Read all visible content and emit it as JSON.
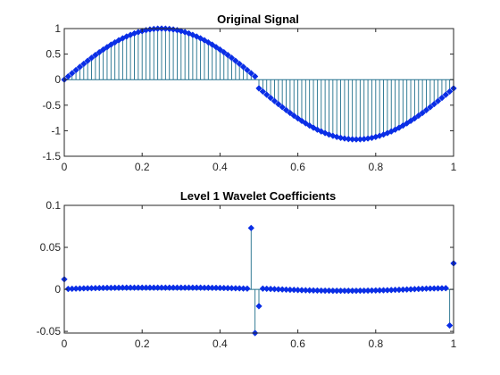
{
  "chart_data": [
    {
      "type": "stem",
      "title": "Original Signal",
      "xlim": [
        0,
        1
      ],
      "ylim": [
        -1.5,
        1
      ],
      "xticks": [
        0,
        0.2,
        0.4,
        0.6,
        0.8,
        1
      ],
      "xtick_labels": [
        "0",
        "0.2",
        "0.4",
        "0.6",
        "0.8",
        "1"
      ],
      "yticks": [
        -1.5,
        -1,
        -0.5,
        0,
        0.5,
        1
      ],
      "ytick_labels": [
        "-1.5",
        "-1",
        "-0.5",
        "0",
        "0.5",
        "1"
      ],
      "marker": "diamond",
      "marker_color": "#0a2ee6",
      "stem_color": "#1f6f8b",
      "series": [
        {
          "x": [
            0.0,
            0.01,
            0.02,
            0.03,
            0.04,
            0.05,
            0.06,
            0.07,
            0.08,
            0.09,
            0.1,
            0.11,
            0.12,
            0.13,
            0.14,
            0.15,
            0.16,
            0.17,
            0.18,
            0.19,
            0.2,
            0.21,
            0.22,
            0.23,
            0.24,
            0.25,
            0.26,
            0.27,
            0.28,
            0.29,
            0.3,
            0.31,
            0.32,
            0.33,
            0.34,
            0.35,
            0.36,
            0.37,
            0.38,
            0.39,
            0.4,
            0.41,
            0.42,
            0.43,
            0.44,
            0.45,
            0.46,
            0.47,
            0.48,
            0.49,
            0.5,
            0.51,
            0.52,
            0.53,
            0.54,
            0.55,
            0.56,
            0.57,
            0.58,
            0.59,
            0.6,
            0.61,
            0.62,
            0.63,
            0.64,
            0.65,
            0.66,
            0.67,
            0.68,
            0.69,
            0.7,
            0.71,
            0.72,
            0.73,
            0.74,
            0.75,
            0.76,
            0.77,
            0.78,
            0.79,
            0.8,
            0.81,
            0.82,
            0.83,
            0.84,
            0.85,
            0.86,
            0.87,
            0.88,
            0.89,
            0.9,
            0.91,
            0.92,
            0.93,
            0.94,
            0.95,
            0.96,
            0.97,
            0.98,
            0.99,
            1.0
          ],
          "y": [
            0.0,
            0.063,
            0.125,
            0.187,
            0.249,
            0.309,
            0.368,
            0.426,
            0.482,
            0.536,
            0.588,
            0.637,
            0.685,
            0.729,
            0.771,
            0.809,
            0.844,
            0.876,
            0.905,
            0.93,
            0.951,
            0.969,
            0.982,
            0.992,
            0.998,
            1.0,
            0.998,
            0.992,
            0.982,
            0.969,
            0.951,
            0.93,
            0.905,
            0.876,
            0.844,
            0.809,
            0.771,
            0.729,
            0.685,
            0.637,
            0.588,
            0.536,
            0.482,
            0.426,
            0.368,
            0.309,
            0.249,
            0.187,
            0.125,
            0.063,
            -0.17,
            -0.233,
            -0.295,
            -0.357,
            -0.419,
            -0.479,
            -0.538,
            -0.596,
            -0.652,
            -0.706,
            -0.758,
            -0.807,
            -0.855,
            -0.899,
            -0.941,
            -0.979,
            -1.014,
            -1.046,
            -1.075,
            -1.1,
            -1.121,
            -1.139,
            -1.152,
            -1.162,
            -1.168,
            -1.17,
            -1.168,
            -1.162,
            -1.152,
            -1.139,
            -1.121,
            -1.1,
            -1.075,
            -1.046,
            -1.014,
            -0.979,
            -0.941,
            -0.899,
            -0.855,
            -0.807,
            -0.758,
            -0.706,
            -0.652,
            -0.596,
            -0.538,
            -0.479,
            -0.419,
            -0.357,
            -0.295,
            -0.233,
            -0.17
          ]
        }
      ]
    },
    {
      "type": "stem",
      "title": "Level 1 Wavelet Coefficients",
      "xlim": [
        0,
        1
      ],
      "ylim": [
        -0.052,
        0.1
      ],
      "xticks": [
        0,
        0.2,
        0.4,
        0.6,
        0.8,
        1
      ],
      "xtick_labels": [
        "0",
        "0.2",
        "0.4",
        "0.6",
        "0.8",
        "1"
      ],
      "yticks": [
        -0.05,
        0,
        0.05,
        0.1
      ],
      "ytick_labels": [
        "-0.05",
        "0",
        "0.05",
        "0.1"
      ],
      "marker": "diamond",
      "marker_color": "#0a2ee6",
      "stem_color": "#1f6f8b",
      "series": [
        {
          "x": [
            0.0,
            0.01,
            0.02,
            0.03,
            0.04,
            0.05,
            0.06,
            0.07,
            0.08,
            0.09,
            0.1,
            0.11,
            0.12,
            0.13,
            0.14,
            0.15,
            0.16,
            0.17,
            0.18,
            0.19,
            0.2,
            0.21,
            0.22,
            0.23,
            0.24,
            0.25,
            0.26,
            0.27,
            0.28,
            0.29,
            0.3,
            0.31,
            0.32,
            0.33,
            0.34,
            0.35,
            0.36,
            0.37,
            0.38,
            0.39,
            0.4,
            0.41,
            0.42,
            0.43,
            0.44,
            0.45,
            0.46,
            0.47,
            0.48,
            0.49,
            0.5,
            0.51,
            0.52,
            0.53,
            0.54,
            0.55,
            0.56,
            0.57,
            0.58,
            0.59,
            0.6,
            0.61,
            0.62,
            0.63,
            0.64,
            0.65,
            0.66,
            0.67,
            0.68,
            0.69,
            0.7,
            0.71,
            0.72,
            0.73,
            0.74,
            0.75,
            0.76,
            0.77,
            0.78,
            0.79,
            0.8,
            0.81,
            0.82,
            0.83,
            0.84,
            0.85,
            0.86,
            0.87,
            0.88,
            0.89,
            0.9,
            0.91,
            0.92,
            0.93,
            0.94,
            0.95,
            0.96,
            0.97,
            0.98,
            0.99,
            1.0
          ],
          "y": [
            0.012,
            0.0005,
            0.0007,
            0.0009,
            0.001,
            0.0012,
            0.0013,
            0.0014,
            0.0015,
            0.0016,
            0.0017,
            0.0018,
            0.0018,
            0.0019,
            0.0019,
            0.002,
            0.002,
            0.002,
            0.002,
            0.002,
            0.002,
            0.002,
            0.002,
            0.002,
            0.002,
            0.002,
            0.002,
            0.002,
            0.002,
            0.002,
            0.002,
            0.002,
            0.002,
            0.002,
            0.002,
            0.002,
            0.0019,
            0.0019,
            0.0018,
            0.0018,
            0.0017,
            0.0016,
            0.0015,
            0.0014,
            0.0013,
            0.0012,
            0.001,
            0.0009,
            0.073,
            -0.052,
            -0.02,
            0.0009,
            0.0007,
            0.0005,
            0.0003,
            0.0001,
            -0.0001,
            -0.0003,
            -0.0005,
            -0.0006,
            -0.0008,
            -0.001,
            -0.0011,
            -0.0012,
            -0.0013,
            -0.0014,
            -0.0015,
            -0.0016,
            -0.0016,
            -0.0017,
            -0.0017,
            -0.0017,
            -0.0017,
            -0.0017,
            -0.0017,
            -0.0017,
            -0.0016,
            -0.0016,
            -0.0015,
            -0.0014,
            -0.0013,
            -0.0012,
            -0.0011,
            -0.001,
            -0.0008,
            -0.0006,
            -0.0005,
            -0.0003,
            -0.0001,
            0.0001,
            0.0003,
            0.0005,
            0.0007,
            0.0009,
            0.001,
            0.0011,
            0.0012,
            0.0013,
            0.0014,
            -0.043,
            0.031
          ]
        }
      ]
    }
  ]
}
